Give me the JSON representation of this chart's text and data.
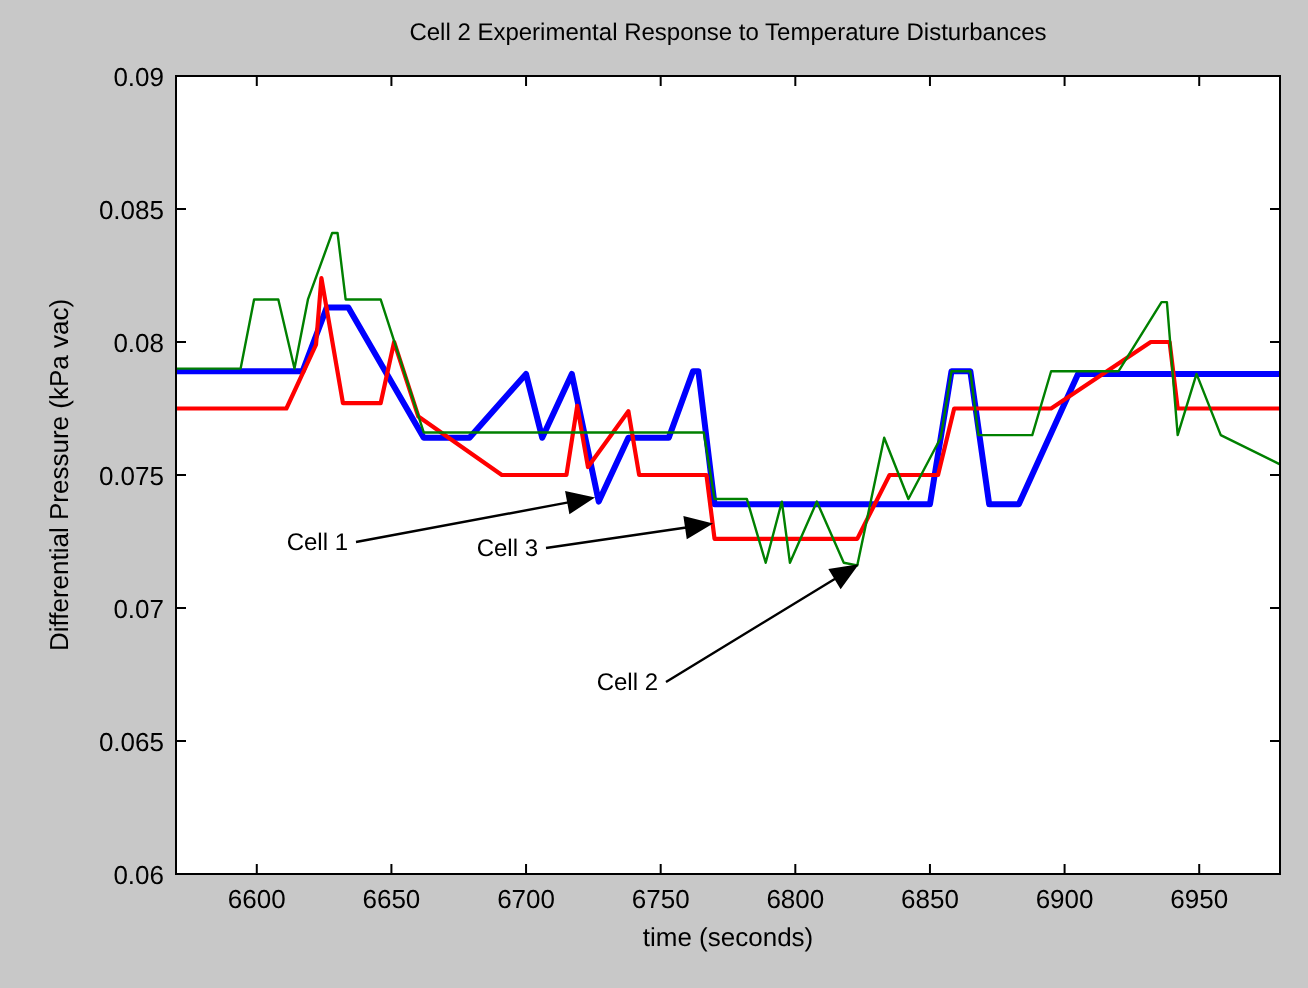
{
  "chart_data": {
    "type": "line",
    "title": "Cell 2 Experimental Response to Temperature Disturbances",
    "xlabel": "time (seconds)",
    "ylabel": "Differential Pressure (kPa vac)",
    "xlim": [
      6570,
      6980
    ],
    "xticks": [
      6600,
      6650,
      6700,
      6750,
      6800,
      6850,
      6900,
      6950
    ],
    "ylim": [
      0.06,
      0.09
    ],
    "yticks": [
      0.06,
      0.065,
      0.07,
      0.075,
      0.08,
      0.085,
      0.09
    ],
    "grid": false,
    "marker": "none",
    "line_style": "solid",
    "series": [
      {
        "color": "#0000ff",
        "x": [
          6570,
          6617,
          6626,
          6634,
          6662,
          6679,
          6700,
          6706,
          6717,
          6727,
          6738,
          6753,
          6762,
          6764,
          6770,
          6850,
          6858,
          6865,
          6872,
          6883,
          6905,
          6980
        ],
        "values": [
          0.0789,
          0.0789,
          0.0813,
          0.0813,
          0.0764,
          0.0764,
          0.0788,
          0.0764,
          0.0788,
          0.074,
          0.0764,
          0.0764,
          0.0789,
          0.0789,
          0.0739,
          0.0739,
          0.0789,
          0.0789,
          0.0739,
          0.0739,
          0.0788,
          0.0788
        ]
      },
      {
        "color": "#ff0000",
        "x": [
          6570,
          6611,
          6622,
          6624,
          6632,
          6646,
          6651,
          6660,
          6691,
          6715,
          6719,
          6723,
          6738,
          6742,
          6767,
          6770,
          6823,
          6835,
          6853,
          6859,
          6895,
          6932,
          6939,
          6942,
          6980
        ],
        "values": [
          0.0775,
          0.0775,
          0.0799,
          0.0824,
          0.0777,
          0.0777,
          0.08,
          0.0772,
          0.075,
          0.075,
          0.0776,
          0.0753,
          0.0774,
          0.075,
          0.075,
          0.0726,
          0.0726,
          0.075,
          0.075,
          0.0775,
          0.0775,
          0.08,
          0.08,
          0.0775,
          0.0775
        ]
      },
      {
        "color": "#008000",
        "x": [
          6570,
          6594,
          6599,
          6608,
          6614,
          6619,
          6628,
          6630,
          6633,
          6646,
          6662,
          6766,
          6770,
          6782,
          6789,
          6795,
          6798,
          6808,
          6818,
          6823,
          6833,
          6842,
          6854,
          6858,
          6865,
          6868,
          6888,
          6895,
          6920,
          6936,
          6938,
          6942,
          6949,
          6958,
          6980
        ],
        "values": [
          0.079,
          0.079,
          0.0816,
          0.0816,
          0.079,
          0.0816,
          0.0841,
          0.0841,
          0.0816,
          0.0816,
          0.0766,
          0.0766,
          0.0741,
          0.0741,
          0.0717,
          0.074,
          0.0717,
          0.074,
          0.0717,
          0.0716,
          0.0764,
          0.0741,
          0.0764,
          0.0789,
          0.0789,
          0.0765,
          0.0765,
          0.0789,
          0.0789,
          0.0815,
          0.0815,
          0.0765,
          0.0788,
          0.0765,
          0.0754
        ]
      }
    ],
    "annotations": [
      "Cell 1",
      "Cell 3",
      "Cell 2"
    ]
  }
}
